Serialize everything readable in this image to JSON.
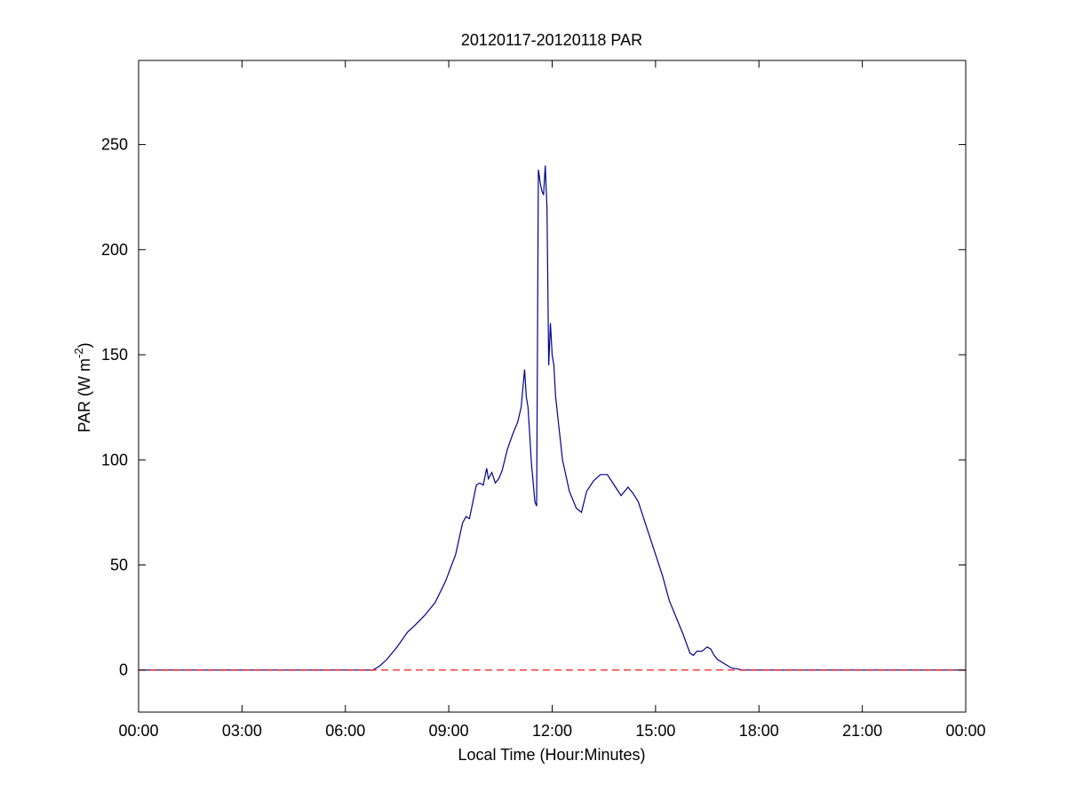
{
  "chart_data": {
    "type": "line",
    "title": "20120117-20120118 PAR",
    "xlabel": "Local Time (Hour:Minutes)",
    "ylabel": {
      "main": "PAR (W m",
      "sup": "-2",
      "close": ")"
    },
    "xlim": [
      0,
      24
    ],
    "ylim": [
      -20,
      290
    ],
    "x_ticks": [
      {
        "value": 0,
        "label": "00:00"
      },
      {
        "value": 3,
        "label": "03:00"
      },
      {
        "value": 6,
        "label": "06:00"
      },
      {
        "value": 9,
        "label": "09:00"
      },
      {
        "value": 12,
        "label": "12:00"
      },
      {
        "value": 15,
        "label": "15:00"
      },
      {
        "value": 18,
        "label": "18:00"
      },
      {
        "value": 21,
        "label": "21:00"
      },
      {
        "value": 24,
        "label": "00:00"
      }
    ],
    "y_ticks": [
      {
        "value": 0,
        "label": "0"
      },
      {
        "value": 50,
        "label": "50"
      },
      {
        "value": 100,
        "label": "100"
      },
      {
        "value": 150,
        "label": "150"
      },
      {
        "value": 200,
        "label": "200"
      },
      {
        "value": 250,
        "label": "250"
      }
    ],
    "grid": false,
    "series": [
      {
        "style": "solid",
        "color": "#00008b",
        "x": [
          0,
          6.8,
          7.0,
          7.2,
          7.5,
          7.8,
          8.0,
          8.3,
          8.6,
          8.9,
          9.2,
          9.4,
          9.5,
          9.6,
          9.7,
          9.8,
          9.9,
          10.0,
          10.1,
          10.15,
          10.25,
          10.35,
          10.45,
          10.55,
          10.7,
          10.85,
          11.0,
          11.1,
          11.2,
          11.25,
          11.3,
          11.4,
          11.5,
          11.55,
          11.6,
          11.62,
          11.65,
          11.7,
          11.75,
          11.8,
          11.85,
          11.9,
          11.95,
          12.0,
          12.05,
          12.1,
          12.2,
          12.3,
          12.5,
          12.7,
          12.85,
          13.0,
          13.2,
          13.4,
          13.6,
          13.8,
          14.0,
          14.2,
          14.35,
          14.5,
          14.6,
          14.8,
          15.0,
          15.2,
          15.4,
          15.6,
          15.8,
          16.0,
          16.1,
          16.2,
          16.35,
          16.5,
          16.6,
          16.7,
          16.8,
          17.0,
          17.2,
          17.4,
          17.5,
          24
        ],
        "y": [
          0,
          0,
          2,
          5,
          11,
          18,
          21,
          26,
          32,
          42,
          55,
          70,
          73,
          72,
          80,
          88,
          89,
          88,
          96,
          91,
          94,
          89,
          91,
          95,
          105,
          112,
          118,
          125,
          143,
          130,
          125,
          98,
          80,
          78,
          238,
          236,
          232,
          228,
          226,
          240,
          220,
          145,
          165,
          150,
          145,
          130,
          115,
          100,
          85,
          77,
          75,
          85,
          90,
          93,
          93,
          88,
          83,
          87,
          84,
          80,
          75,
          65,
          55,
          45,
          33,
          25,
          17,
          8,
          7,
          9,
          9,
          11,
          10,
          7,
          5,
          3,
          1,
          0.5,
          0,
          0
        ]
      },
      {
        "style": "dashed",
        "color": "#ff0000",
        "x": [
          0,
          24
        ],
        "y": [
          0,
          0
        ]
      }
    ]
  }
}
